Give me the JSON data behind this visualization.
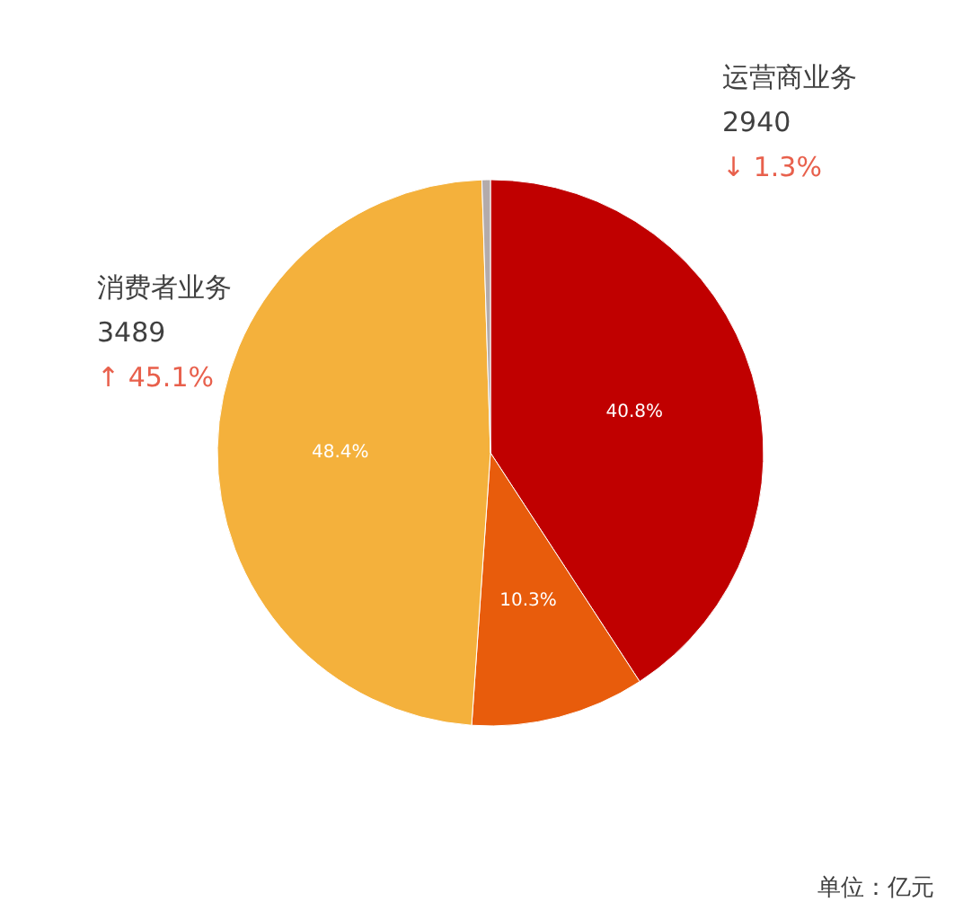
{
  "chart_data": {
    "type": "pie",
    "categories": [
      "运营商业务",
      null,
      "消费者业务",
      null
    ],
    "values": [
      40.8,
      10.3,
      48.4,
      0.5
    ],
    "colors": [
      "#c00000",
      "#e85c0c",
      "#f4b13c",
      "#b3abab"
    ],
    "value_labels": [
      "40.8%",
      "10.3%",
      "48.4%",
      null
    ],
    "annotations": [
      "2940",
      "↓ 1.3%",
      "3489",
      "↑ 45.1%",
      "单位：亿元"
    ]
  }
}
